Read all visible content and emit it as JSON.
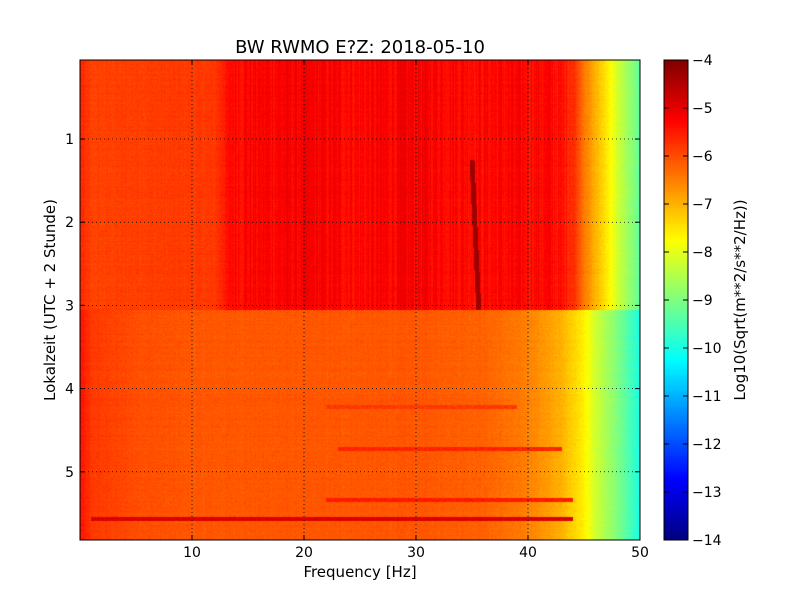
{
  "chart_data": {
    "type": "heatmap",
    "title": "BW RWMO E?Z: 2018-05-10",
    "xlabel": "Frequency [Hz]",
    "ylabel": "Lokalzeit (UTC + 2 Stunde)",
    "xlim": [
      0,
      50
    ],
    "ylim": [
      5.82,
      0.05
    ],
    "y_inverted": true,
    "x_ticks": [
      10,
      20,
      30,
      40,
      50
    ],
    "x_tick_labels": [
      "10",
      "20",
      "30",
      "40",
      "50"
    ],
    "y_ticks": [
      1,
      2,
      3,
      4,
      5
    ],
    "y_tick_labels": [
      "1",
      "2",
      "3",
      "4",
      "5"
    ],
    "grid": true,
    "grid_style": "dotted",
    "colormap": "jet",
    "colorbar": {
      "label": "Log10(Sqrt(m**2/s**2/Hz))",
      "min": -14,
      "max": -4,
      "ticks": [
        -4,
        -5,
        -6,
        -7,
        -8,
        -9,
        -10,
        -11,
        -12,
        -13,
        -14
      ],
      "tick_labels": [
        "−4",
        "−5",
        "−6",
        "−7",
        "−8",
        "−9",
        "−10",
        "−11",
        "−12",
        "−13",
        "−14"
      ]
    },
    "frequency_profile_early": {
      "description_time_range": [
        0.05,
        3.05
      ],
      "freq": [
        0,
        1,
        5,
        12,
        13.5,
        20,
        25,
        30,
        35,
        40,
        42,
        44,
        45,
        46,
        47,
        48,
        50
      ],
      "value": [
        -5.6,
        -5.9,
        -5.85,
        -5.8,
        -5.3,
        -5.2,
        -5.3,
        -5.2,
        -5.3,
        -5.3,
        -5.3,
        -5.6,
        -6.4,
        -7.0,
        -7.5,
        -8.2,
        -9.3
      ]
    },
    "frequency_profile_late": {
      "description_time_range": [
        3.05,
        5.82
      ],
      "freq": [
        0,
        1,
        5,
        10,
        20,
        30,
        36,
        40,
        43,
        45,
        46,
        48,
        50
      ],
      "value": [
        -5.4,
        -5.8,
        -6.0,
        -6.1,
        -6.1,
        -6.1,
        -6.2,
        -6.5,
        -7.0,
        -7.6,
        -8.2,
        -9.0,
        -10.0
      ]
    },
    "features": [
      {
        "kind": "drifting_line",
        "freq_start": 35.0,
        "time_start": 1.25,
        "freq_end": 35.6,
        "time_end": 3.05,
        "value": -4.3
      },
      {
        "kind": "horizontal_band",
        "time": 5.57,
        "freq_range": [
          1,
          44
        ],
        "value": -4.9
      },
      {
        "kind": "horizontal_band",
        "time": 5.34,
        "freq_range": [
          22,
          44
        ],
        "value": -5.5
      },
      {
        "kind": "horizontal_band",
        "time": 4.73,
        "freq_range": [
          23,
          43
        ],
        "value": -5.6
      },
      {
        "kind": "horizontal_band",
        "time": 4.22,
        "freq_range": [
          22,
          39
        ],
        "value": -5.8
      }
    ]
  }
}
